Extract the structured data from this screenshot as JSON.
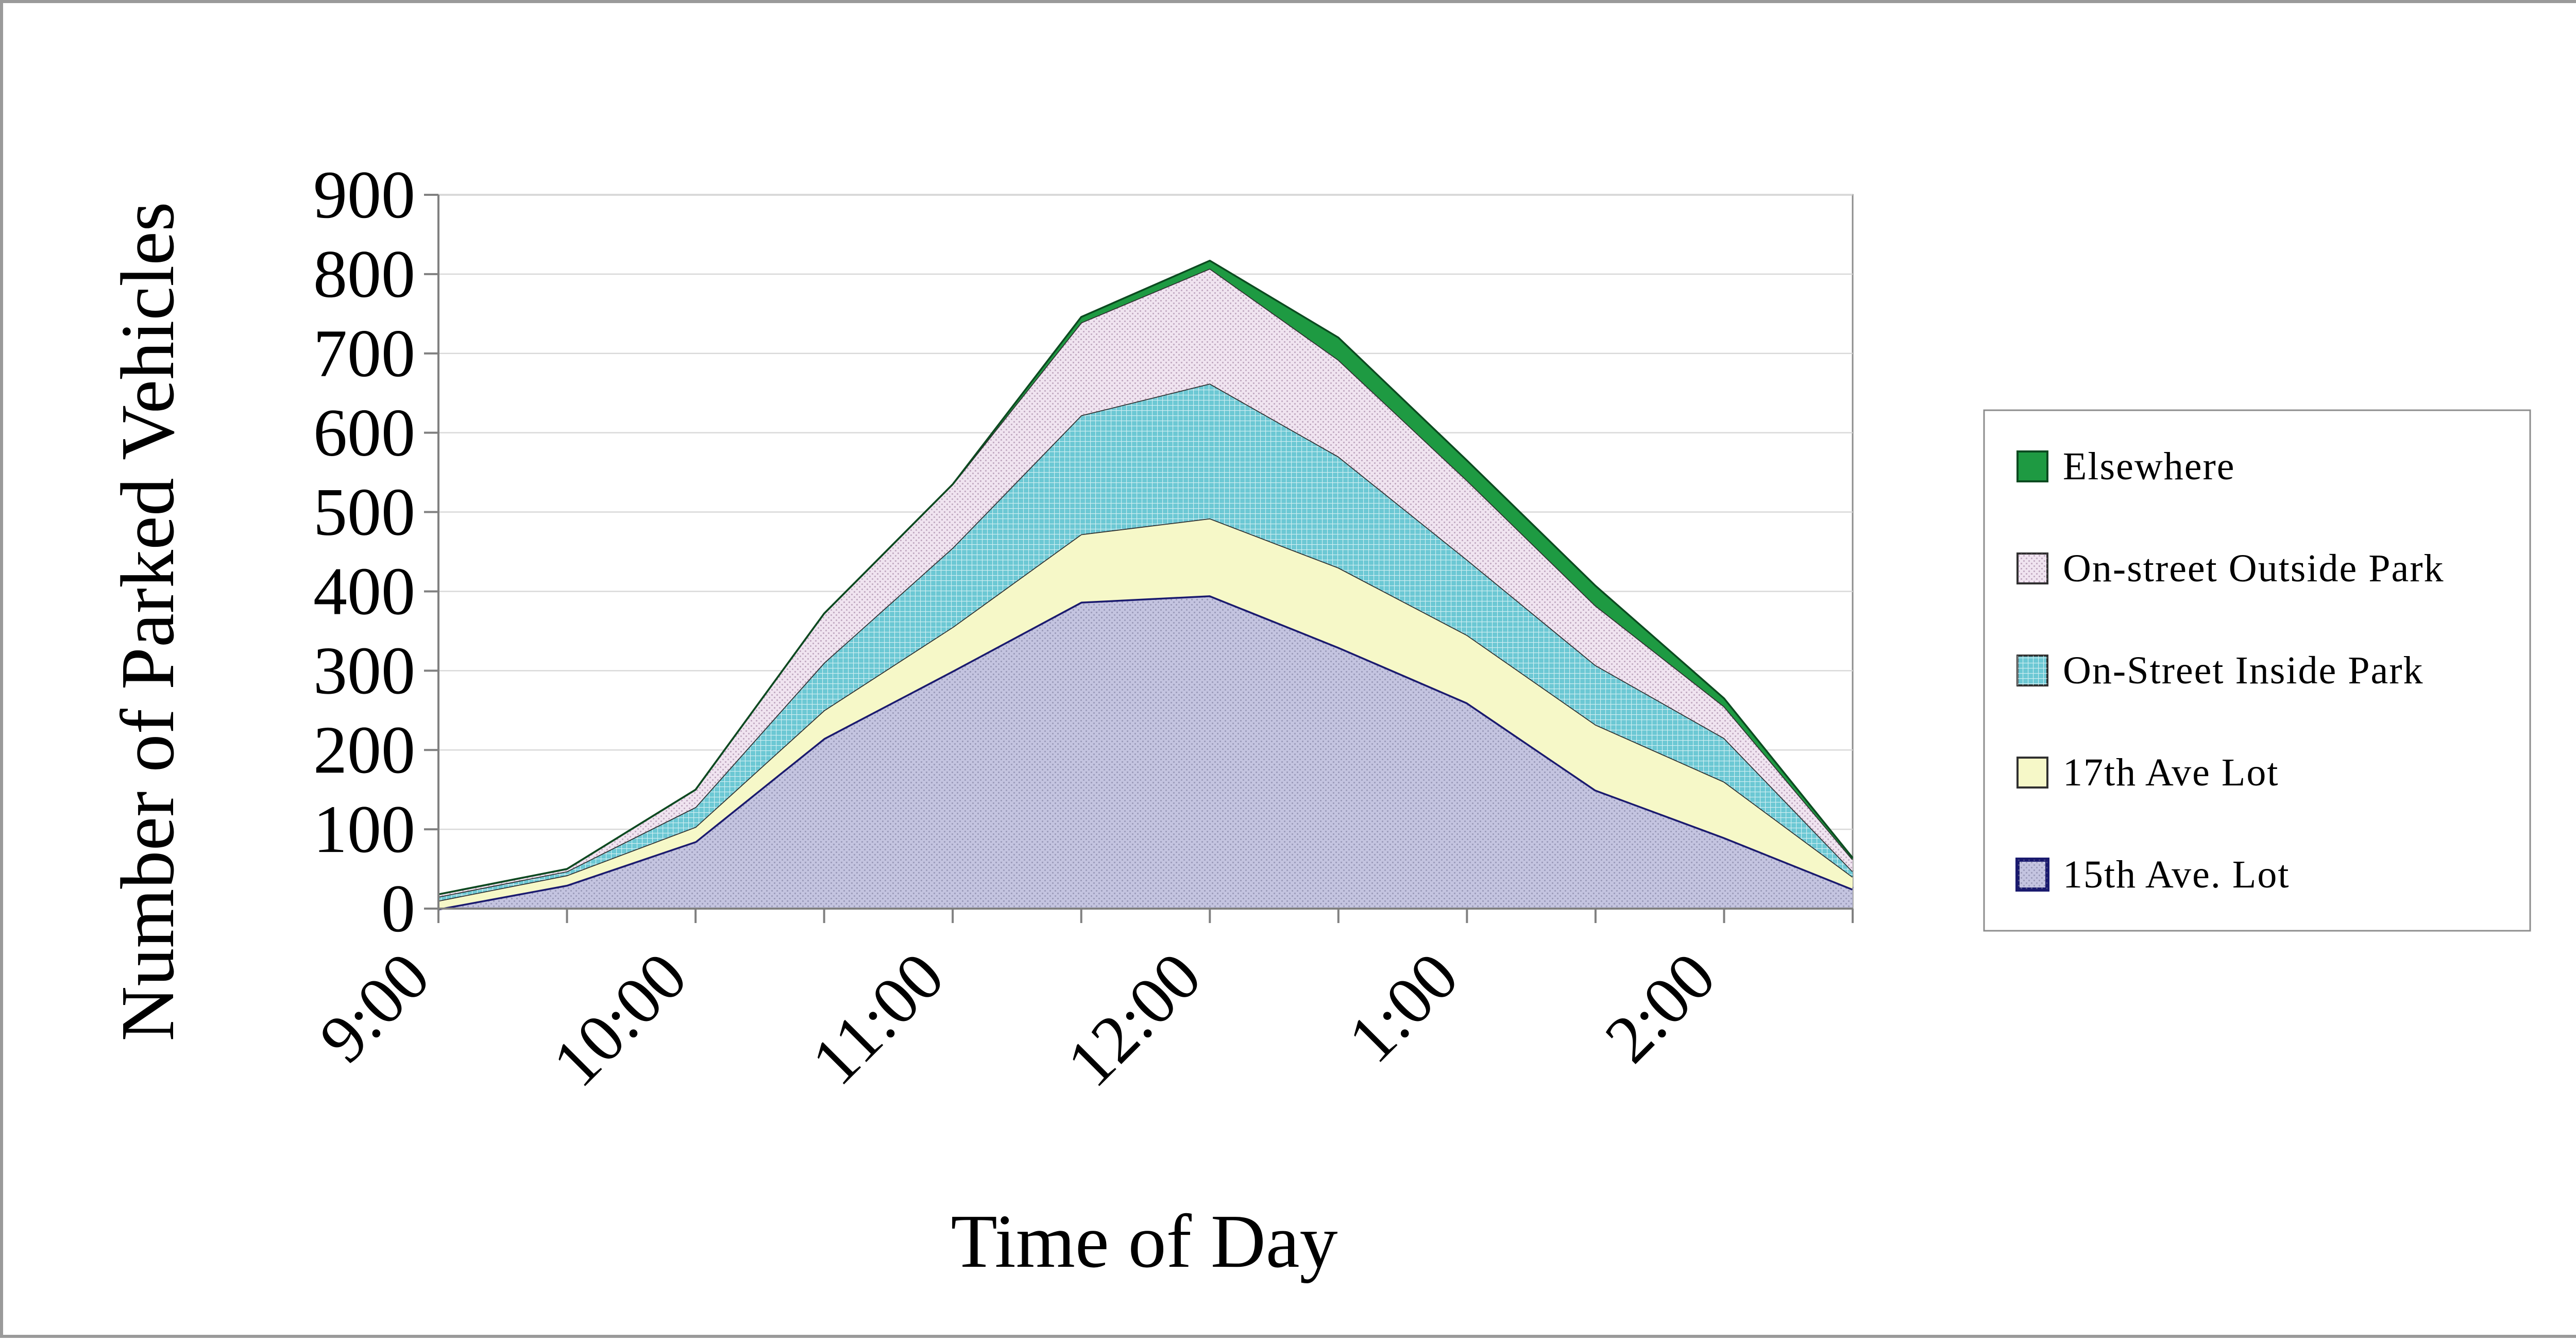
{
  "chart_data": {
    "type": "area",
    "stacked": true,
    "title": "",
    "xlabel": "Time of Day",
    "ylabel": "Number of Parked Vehicles",
    "ylim": [
      0,
      900
    ],
    "yticks": [
      0,
      100,
      200,
      300,
      400,
      500,
      600,
      700,
      800,
      900
    ],
    "x": [
      "9:00",
      "9:30",
      "10:00",
      "10:30",
      "11:00",
      "11:30",
      "12:00",
      "12:30",
      "1:00",
      "1:30",
      "2:00",
      "2:30"
    ],
    "xtick_labels": [
      "9:00",
      "10:00",
      "11:00",
      "12:00",
      "1:00",
      "2:00"
    ],
    "grid": "horizontal",
    "legend_position": "right",
    "series": [
      {
        "name": "15th Ave. Lot",
        "values": [
          0,
          30,
          85,
          215,
          300,
          387,
          395,
          330,
          260,
          150,
          90,
          25
        ],
        "color": "#c4c4e0",
        "line": "#1a1a6e",
        "pattern": "dots"
      },
      {
        "name": "17th Ave Lot",
        "values": [
          10,
          12,
          18,
          35,
          55,
          85,
          97,
          100,
          85,
          82,
          70,
          15
        ],
        "color": "#f6f8c8",
        "line": "#303030",
        "pattern": "none"
      },
      {
        "name": "On-Street Inside Park",
        "values": [
          5,
          5,
          25,
          60,
          100,
          150,
          170,
          140,
          95,
          75,
          55,
          7
        ],
        "color": "#6cc8d4",
        "line": "#303030",
        "pattern": "grid"
      },
      {
        "name": "On-street Outside Park",
        "values": [
          3,
          3,
          22,
          62,
          80,
          117,
          145,
          122,
          100,
          75,
          40,
          15
        ],
        "color": "#f0e4f0",
        "line": "#303030",
        "pattern": "dots"
      },
      {
        "name": "Elsewhere",
        "values": [
          0,
          0,
          0,
          0,
          0,
          7,
          10,
          28,
          25,
          25,
          10,
          2
        ],
        "color": "#1e9a42",
        "line": "#0c4a20",
        "pattern": "none"
      }
    ],
    "legend_order": [
      "Elsewhere",
      "On-street Outside Park",
      "On-Street Inside Park",
      "17th Ave Lot",
      "15th Ave. Lot"
    ]
  }
}
